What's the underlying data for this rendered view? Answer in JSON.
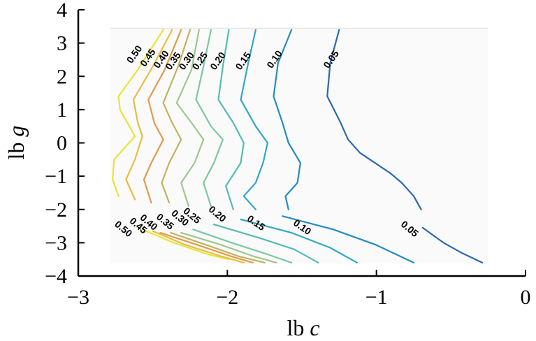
{
  "chart_data": {
    "type": "contour",
    "xlabel": {
      "prefix": "lb",
      "var": "c"
    },
    "ylabel": {
      "prefix": "lb",
      "var": "g"
    },
    "xlim": [
      -3,
      0
    ],
    "ylim": [
      -4,
      4
    ],
    "xticks": [
      "−3",
      "−2",
      "−1",
      "0"
    ],
    "yticks": [
      "4",
      "3",
      "2",
      "1",
      "0",
      "−1",
      "−2",
      "−3",
      "−4"
    ],
    "grid": false,
    "levels": [
      {
        "level": "0.50",
        "color": "#e8e43a",
        "points": [
          [
            -2.43,
            3.4
          ],
          [
            -2.6,
            2.2
          ],
          [
            -2.73,
            1.4
          ],
          [
            -2.72,
            1
          ],
          [
            -2.62,
            0.2
          ],
          [
            -2.76,
            -0.5
          ],
          [
            -2.77,
            -1.1
          ],
          [
            -2.73,
            -1.6
          ]
        ]
      },
      {
        "level": "0.45",
        "color": "#e6bf3f",
        "points": [
          [
            -2.37,
            3.4
          ],
          [
            -2.5,
            2.3
          ],
          [
            -2.63,
            1.3
          ],
          [
            -2.6,
            0.6
          ],
          [
            -2.57,
            0.2
          ],
          [
            -2.62,
            -0.5
          ],
          [
            -2.68,
            -1.1
          ],
          [
            -2.62,
            -1.7
          ]
        ]
      },
      {
        "level": "0.40",
        "color": "#e29a4a",
        "points": [
          [
            -2.31,
            3.4
          ],
          [
            -2.42,
            2.2
          ],
          [
            -2.53,
            1.3
          ],
          [
            -2.49,
            0.6
          ],
          [
            -2.43,
            0.1
          ],
          [
            -2.51,
            -0.6
          ],
          [
            -2.56,
            -1.1
          ],
          [
            -2.51,
            -1.8
          ]
        ]
      },
      {
        "level": "0.35",
        "color": "#bfb45d",
        "points": [
          [
            -2.25,
            3.4
          ],
          [
            -2.33,
            2.3
          ],
          [
            -2.43,
            1.2
          ],
          [
            -2.37,
            0.6
          ],
          [
            -2.31,
            0.1
          ],
          [
            -2.39,
            -0.6
          ],
          [
            -2.44,
            -1.2
          ],
          [
            -2.39,
            -1.8
          ]
        ]
      },
      {
        "level": "0.30",
        "color": "#9ec78d",
        "points": [
          [
            -2.19,
            3.4
          ],
          [
            -2.24,
            2.2
          ],
          [
            -2.34,
            1.2
          ],
          [
            -2.24,
            0.6
          ],
          [
            -2.16,
            0.1
          ],
          [
            -2.22,
            -0.6
          ],
          [
            -2.31,
            -1.2
          ],
          [
            -2.26,
            -1.9
          ]
        ]
      },
      {
        "level": "0.25",
        "color": "#7cc7a3",
        "points": [
          [
            -2.11,
            3.4
          ],
          [
            -2.16,
            2.3
          ],
          [
            -2.21,
            1.3
          ],
          [
            -2.11,
            0.5
          ],
          [
            -2.03,
            0.1
          ],
          [
            -2.09,
            -0.6
          ],
          [
            -2.16,
            -1.2
          ],
          [
            -2.11,
            -1.9
          ]
        ]
      },
      {
        "level": "0.20",
        "color": "#54bbb3",
        "points": [
          [
            -1.99,
            3.4
          ],
          [
            -2.03,
            2.3
          ],
          [
            -2.06,
            1.3
          ],
          [
            -1.96,
            0.6
          ],
          [
            -1.89,
            0
          ],
          [
            -1.91,
            -0.6
          ],
          [
            -2.01,
            -1.3
          ],
          [
            -1.96,
            -2
          ]
        ]
      },
      {
        "level": "0.15",
        "color": "#32a7c2",
        "points": [
          [
            -1.81,
            3.4
          ],
          [
            -1.86,
            2.4
          ],
          [
            -1.91,
            1.3
          ],
          [
            -1.81,
            0.5
          ],
          [
            -1.73,
            0
          ],
          [
            -1.76,
            -0.6
          ],
          [
            -1.81,
            -1.2
          ],
          [
            -1.89,
            -1.6
          ],
          [
            -1.81,
            -2
          ]
        ]
      },
      {
        "level": "0.10",
        "color": "#238cc4",
        "points": [
          [
            -1.57,
            3.4
          ],
          [
            -1.66,
            2.4
          ],
          [
            -1.69,
            1.4
          ],
          [
            -1.63,
            0.6
          ],
          [
            -1.59,
            0
          ],
          [
            -1.51,
            -0.6
          ],
          [
            -1.53,
            -1.2
          ],
          [
            -1.61,
            -1.6
          ],
          [
            -1.59,
            -2
          ]
        ]
      },
      {
        "level": "0.05",
        "color": "#2e68b0",
        "points": [
          [
            -1.25,
            3.4
          ],
          [
            -1.31,
            2.4
          ],
          [
            -1.33,
            1.4
          ],
          [
            -1.24,
            0.6
          ],
          [
            -1.19,
            0.1
          ],
          [
            -1.11,
            -0.3
          ],
          [
            -1.01,
            -0.6
          ],
          [
            -0.91,
            -0.9
          ],
          [
            -0.83,
            -1.2
          ],
          [
            -0.75,
            -1.6
          ],
          [
            -0.7,
            -2
          ]
        ]
      },
      {
        "level": "0.50",
        "color": "#e8e43a",
        "points": [
          [
            -2.57,
            -2.6
          ],
          [
            -2.36,
            -3
          ],
          [
            -2.13,
            -3.35
          ],
          [
            -1.99,
            -3.5
          ]
        ]
      },
      {
        "level": "0.45",
        "color": "#e6bf3f",
        "points": [
          [
            -2.5,
            -2.65
          ],
          [
            -2.29,
            -3.05
          ],
          [
            -2.06,
            -3.38
          ],
          [
            -1.89,
            -3.6
          ]
        ]
      },
      {
        "level": "0.40",
        "color": "#e29a4a",
        "points": [
          [
            -2.45,
            -2.7
          ],
          [
            -2.21,
            -3.05
          ],
          [
            -1.98,
            -3.4
          ],
          [
            -1.83,
            -3.6
          ]
        ]
      },
      {
        "level": "0.35",
        "color": "#bfb45d",
        "points": [
          [
            -2.38,
            -2.7
          ],
          [
            -2.15,
            -3.05
          ],
          [
            -1.93,
            -3.4
          ],
          [
            -1.75,
            -3.6
          ]
        ]
      },
      {
        "level": "0.30",
        "color": "#9ec78d",
        "points": [
          [
            -2.31,
            -2.7
          ],
          [
            -2.05,
            -3.05
          ],
          [
            -1.83,
            -3.4
          ],
          [
            -1.67,
            -3.6
          ]
        ]
      },
      {
        "level": "0.25",
        "color": "#7cc7a3",
        "points": [
          [
            -2.23,
            -2.6
          ],
          [
            -1.97,
            -3
          ],
          [
            -1.73,
            -3.35
          ],
          [
            -1.57,
            -3.6
          ]
        ]
      },
      {
        "level": "0.20",
        "color": "#54bbb3",
        "points": [
          [
            -2.09,
            -2.45
          ],
          [
            -1.79,
            -2.85
          ],
          [
            -1.55,
            -3.2
          ],
          [
            -1.39,
            -3.6
          ]
        ]
      },
      {
        "level": "0.15",
        "color": "#32a7c2",
        "points": [
          [
            -1.91,
            -2.3
          ],
          [
            -1.57,
            -2.7
          ],
          [
            -1.31,
            -3.15
          ],
          [
            -1.13,
            -3.6
          ]
        ]
      },
      {
        "level": "0.10",
        "color": "#238cc4",
        "points": [
          [
            -1.63,
            -2.2
          ],
          [
            -1.29,
            -2.6
          ],
          [
            -1.01,
            -3.05
          ],
          [
            -0.75,
            -3.6
          ]
        ]
      },
      {
        "level": "0.05",
        "color": "#2e68b0",
        "points": [
          [
            -0.69,
            -2.55
          ],
          [
            -0.55,
            -3
          ],
          [
            -0.43,
            -3.3
          ],
          [
            -0.29,
            -3.6
          ]
        ]
      }
    ],
    "contour_labels": [
      {
        "text": "0.50",
        "x": -2.62,
        "y": 2.65,
        "angle": -55
      },
      {
        "text": "0.45",
        "x": -2.53,
        "y": 2.55,
        "angle": -55
      },
      {
        "text": "0.40",
        "x": -2.44,
        "y": 2.5,
        "angle": -55
      },
      {
        "text": "0.35",
        "x": -2.36,
        "y": 2.45,
        "angle": -55
      },
      {
        "text": "0.30",
        "x": -2.27,
        "y": 2.45,
        "angle": -55
      },
      {
        "text": "0.25",
        "x": -2.18,
        "y": 2.45,
        "angle": -55
      },
      {
        "text": "0.20",
        "x": -2.06,
        "y": 2.45,
        "angle": -55
      },
      {
        "text": "0.15",
        "x": -1.89,
        "y": 2.45,
        "angle": -55
      },
      {
        "text": "0.10",
        "x": -1.68,
        "y": 2.5,
        "angle": -55
      },
      {
        "text": "0.05",
        "x": -1.3,
        "y": 2.5,
        "angle": -55
      },
      {
        "text": "0.50",
        "x": -2.7,
        "y": -2.6,
        "angle": 40
      },
      {
        "text": "0.45",
        "x": -2.6,
        "y": -2.5,
        "angle": 40
      },
      {
        "text": "0.40",
        "x": -2.53,
        "y": -2.4,
        "angle": 40
      },
      {
        "text": "0.35",
        "x": -2.42,
        "y": -2.38,
        "angle": 40
      },
      {
        "text": "0.30",
        "x": -2.32,
        "y": -2.27,
        "angle": 40
      },
      {
        "text": "0.25",
        "x": -2.24,
        "y": -2.2,
        "angle": 40
      },
      {
        "text": "0.20",
        "x": -2.07,
        "y": -2.15,
        "angle": 40
      },
      {
        "text": "0.15",
        "x": -1.81,
        "y": -2.42,
        "angle": 35
      },
      {
        "text": "0.10",
        "x": -1.5,
        "y": -2.55,
        "angle": 35
      },
      {
        "text": "0.05",
        "x": -0.78,
        "y": -2.6,
        "angle": 40
      }
    ],
    "colors": {
      "axis": "#000000",
      "plot_background": "#fafafa",
      "plot_top_edge": "#e6e6e6"
    }
  }
}
